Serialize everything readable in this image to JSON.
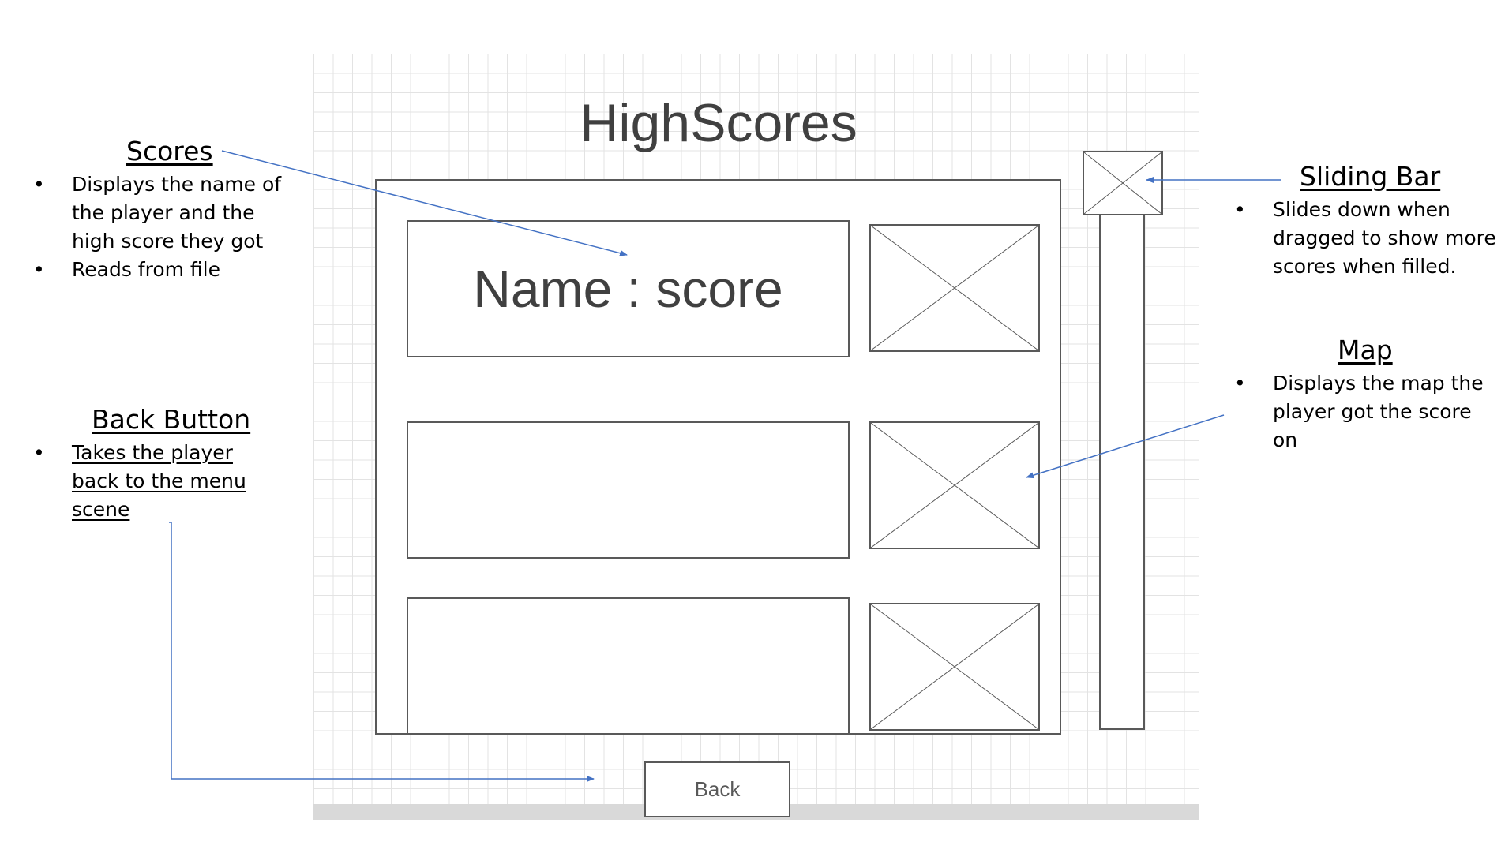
{
  "wireframe": {
    "title": "HighScores",
    "rows": [
      {
        "text": "Name : score"
      },
      {
        "text": ""
      },
      {
        "text": ""
      }
    ],
    "back_label": "Back"
  },
  "annotations": {
    "scores": {
      "heading": "Scores",
      "bullets": [
        "Displays the name of the player and the high score they got",
        "Reads from file"
      ]
    },
    "back_button": {
      "heading": "Back Button",
      "bullets": [
        "Takes the player back to the menu scene"
      ]
    },
    "sliding_bar": {
      "heading": "Sliding Bar",
      "bullets": [
        "Slides down when dragged to show more scores when filled."
      ]
    },
    "map": {
      "heading": "Map",
      "bullets": [
        "Displays the map the player got the score on"
      ]
    }
  },
  "colors": {
    "arrow": "#4472C4",
    "wireframe_stroke": "#595959",
    "grid": "#e3e3e3"
  }
}
